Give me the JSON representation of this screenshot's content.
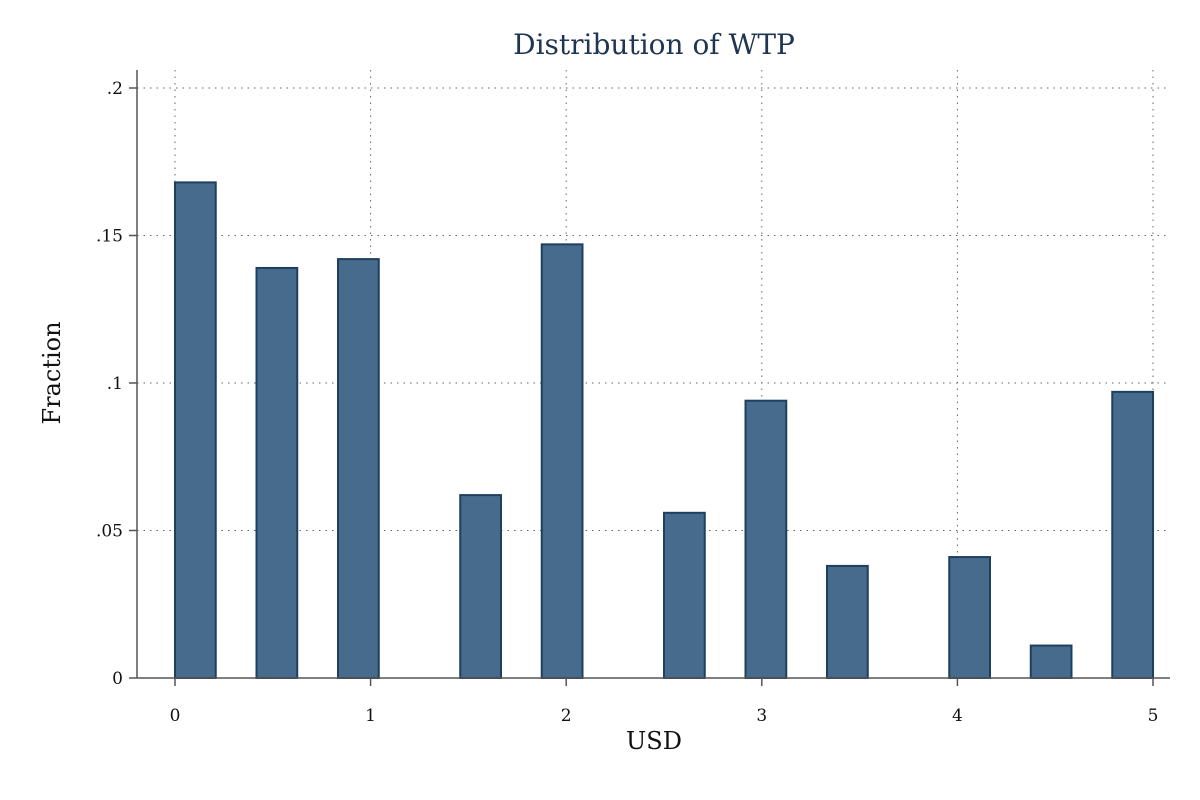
{
  "chart_data": {
    "type": "bar",
    "title": "Distribution of WTP",
    "xlabel": "USD",
    "ylabel": "Fraction",
    "xlim": [
      -0.2,
      5.07
    ],
    "ylim": [
      0,
      0.205
    ],
    "xticks": [
      0,
      1,
      2,
      3,
      4,
      5
    ],
    "xtick_labels": [
      "0",
      "1",
      "2",
      "3",
      "4",
      "5"
    ],
    "yticks": [
      0,
      0.05,
      0.1,
      0.15,
      0.2
    ],
    "ytick_labels": [
      "0",
      ".05",
      ".1",
      ".15",
      ".2"
    ],
    "grid": true,
    "bar_color": "#466b8c",
    "bar_edge_color": "#1f3f5f",
    "title_color": "#1f3552",
    "bars": [
      {
        "x_start": 0.0,
        "x_end": 0.2083,
        "value": 0.168
      },
      {
        "x_start": 0.4167,
        "x_end": 0.625,
        "value": 0.139
      },
      {
        "x_start": 0.8333,
        "x_end": 1.0417,
        "value": 0.142
      },
      {
        "x_start": 1.4583,
        "x_end": 1.6667,
        "value": 0.062
      },
      {
        "x_start": 1.875,
        "x_end": 2.0833,
        "value": 0.147
      },
      {
        "x_start": 2.5,
        "x_end": 2.7083,
        "value": 0.056
      },
      {
        "x_start": 2.9167,
        "x_end": 3.125,
        "value": 0.094
      },
      {
        "x_start": 3.3333,
        "x_end": 3.5417,
        "value": 0.038
      },
      {
        "x_start": 3.9583,
        "x_end": 4.1667,
        "value": 0.041
      },
      {
        "x_start": 4.375,
        "x_end": 4.5833,
        "value": 0.011
      },
      {
        "x_start": 4.7917,
        "x_end": 5.0,
        "value": 0.097
      }
    ]
  }
}
